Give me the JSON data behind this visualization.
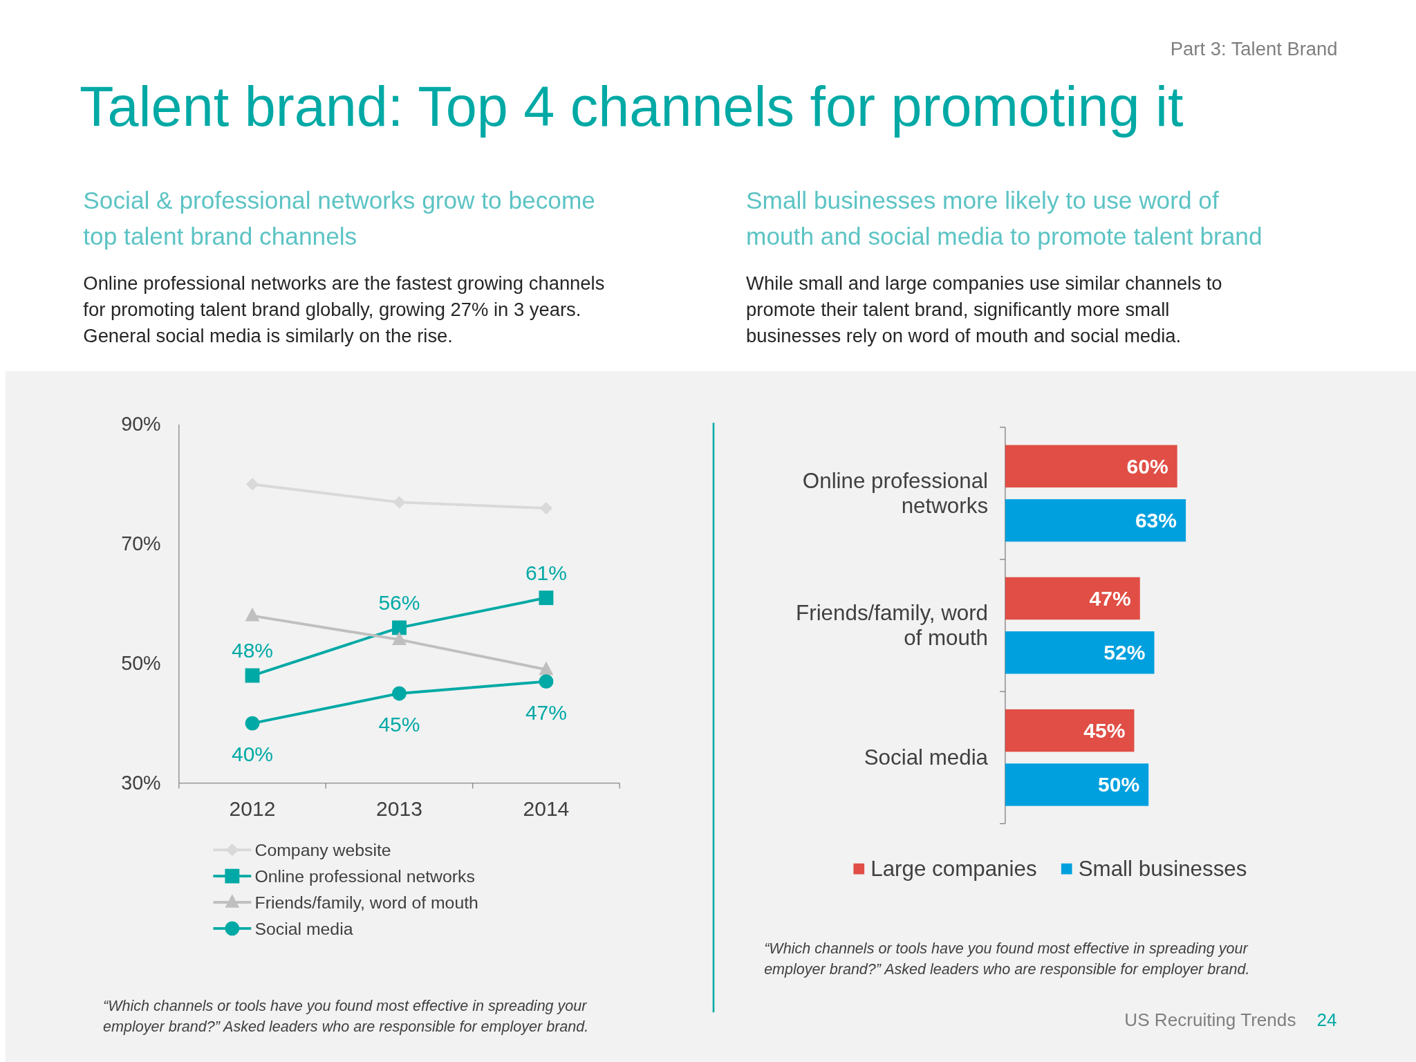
{
  "chart_data": [
    {
      "type": "line",
      "title": "Talent brand: Top 4 channels for promoting it",
      "subtitle": "Social & professional networks grow to become top talent brand channels",
      "categories": [
        "2012",
        "2013",
        "2014"
      ],
      "ylim": [
        30,
        90
      ],
      "yticks": [
        {
          "value": 30,
          "label": "30%"
        },
        {
          "value": 50,
          "label": "50%"
        },
        {
          "value": 70,
          "label": "70%"
        },
        {
          "value": 90,
          "label": "90%"
        }
      ],
      "grid": false,
      "legend": "bottom",
      "line_style": "solid",
      "series": [
        {
          "name": "Company website",
          "color": "#d9d9d9",
          "marker": "diamond",
          "values": [
            80,
            77,
            76
          ]
        },
        {
          "name": "Online professional networks",
          "color": "#00a9a5",
          "marker": "square",
          "values": [
            48,
            56,
            61
          ],
          "value_labels": [
            "48%",
            "56%",
            "61%"
          ]
        },
        {
          "name": "Friends/family, word of mouth",
          "color": "#bfbfbf",
          "marker": "triangle",
          "values": [
            58,
            54,
            49
          ]
        },
        {
          "name": "Social media",
          "color": "#00a9a5",
          "marker": "circle",
          "values": [
            40,
            45,
            47
          ],
          "value_labels": [
            "40%",
            "45%",
            "47%"
          ]
        }
      ],
      "annotations": [
        "Online professional networks are the fastest growing channels for promoting talent brand globally, growing 27% in 3 years. General social media is similarly on the rise.",
        "“Which channels or tools have you found most effective in spreading your employer brand?”  Asked leaders who are responsible for employer brand.",
        "Part 3: Talent Brand",
        "US Recruiting Trends",
        "24"
      ]
    },
    {
      "type": "bar",
      "orientation": "horizontal",
      "subtitle": "Small businesses more likely to use word of mouth and social media to promote talent brand",
      "categories": [
        "Online professional networks",
        "Friends/family, word of mouth",
        "Social media"
      ],
      "legend": "bottom",
      "series": [
        {
          "name": "Large companies",
          "color": "#e04e45",
          "values": [
            60,
            47,
            45
          ],
          "value_labels": [
            "60%",
            "47%",
            "45%"
          ]
        },
        {
          "name": "Small businesses",
          "color": "#00a0df",
          "values": [
            63,
            52,
            50
          ],
          "value_labels": [
            "63%",
            "52%",
            "50%"
          ]
        }
      ],
      "annotations": [
        "While small and large companies use similar channels to promote their talent brand, significantly more small businesses rely on word of mouth and social media.",
        "“Which channels or tools have you found most effective in spreading your employer brand?”  Asked leaders who are responsible for employer brand."
      ]
    }
  ]
}
